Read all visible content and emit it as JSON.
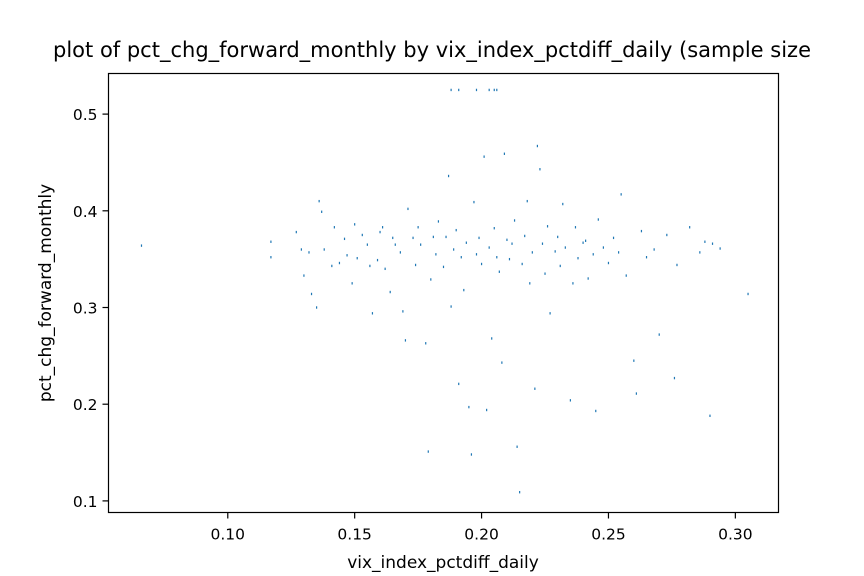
{
  "chart_data": {
    "type": "scatter",
    "title": "plot of pct_chg_forward_monthly by vix_index_pctdiff_daily (sample size",
    "xlabel": "vix_index_pctdiff_daily",
    "ylabel": "pct_chg_forward_monthly",
    "xlim": [
      0.053,
      0.317
    ],
    "ylim": [
      0.088,
      0.542
    ],
    "xticks": [
      0.1,
      0.15,
      0.2,
      0.25,
      0.3
    ],
    "xtick_labels": [
      "0.10",
      "0.15",
      "0.20",
      "0.25",
      "0.30"
    ],
    "yticks": [
      0.1,
      0.2,
      0.3,
      0.4,
      0.5
    ],
    "ytick_labels": [
      "0.1",
      "0.2",
      "0.3",
      "0.4",
      "0.5"
    ],
    "grid": false,
    "marker_color": "#1f77b4",
    "series": [
      {
        "points": [
          [
            0.066,
            0.364
          ],
          [
            0.117,
            0.368
          ],
          [
            0.117,
            0.352
          ],
          [
            0.127,
            0.378
          ],
          [
            0.129,
            0.36
          ],
          [
            0.13,
            0.333
          ],
          [
            0.132,
            0.357
          ],
          [
            0.133,
            0.314
          ],
          [
            0.135,
            0.3
          ],
          [
            0.136,
            0.41
          ],
          [
            0.137,
            0.399
          ],
          [
            0.138,
            0.36
          ],
          [
            0.141,
            0.343
          ],
          [
            0.142,
            0.383
          ],
          [
            0.144,
            0.346
          ],
          [
            0.146,
            0.371
          ],
          [
            0.147,
            0.354
          ],
          [
            0.149,
            0.325
          ],
          [
            0.15,
            0.386
          ],
          [
            0.151,
            0.351
          ],
          [
            0.153,
            0.375
          ],
          [
            0.155,
            0.365
          ],
          [
            0.156,
            0.343
          ],
          [
            0.157,
            0.294
          ],
          [
            0.159,
            0.349
          ],
          [
            0.16,
            0.378
          ],
          [
            0.161,
            0.383
          ],
          [
            0.162,
            0.34
          ],
          [
            0.164,
            0.316
          ],
          [
            0.165,
            0.372
          ],
          [
            0.166,
            0.365
          ],
          [
            0.168,
            0.357
          ],
          [
            0.169,
            0.296
          ],
          [
            0.17,
            0.266
          ],
          [
            0.171,
            0.402
          ],
          [
            0.173,
            0.372
          ],
          [
            0.174,
            0.344
          ],
          [
            0.175,
            0.383
          ],
          [
            0.176,
            0.365
          ],
          [
            0.178,
            0.263
          ],
          [
            0.179,
            0.151
          ],
          [
            0.18,
            0.329
          ],
          [
            0.181,
            0.373
          ],
          [
            0.182,
            0.355
          ],
          [
            0.183,
            0.389
          ],
          [
            0.185,
            0.342
          ],
          [
            0.186,
            0.373
          ],
          [
            0.187,
            0.436
          ],
          [
            0.188,
            0.301
          ],
          [
            0.189,
            0.36
          ],
          [
            0.19,
            0.38
          ],
          [
            0.191,
            0.221
          ],
          [
            0.192,
            0.352
          ],
          [
            0.193,
            0.318
          ],
          [
            0.194,
            0.367
          ],
          [
            0.195,
            0.197
          ],
          [
            0.196,
            0.148
          ],
          [
            0.197,
            0.409
          ],
          [
            0.198,
            0.355
          ],
          [
            0.199,
            0.372
          ],
          [
            0.2,
            0.345
          ],
          [
            0.201,
            0.456
          ],
          [
            0.202,
            0.194
          ],
          [
            0.203,
            0.362
          ],
          [
            0.204,
            0.268
          ],
          [
            0.205,
            0.382
          ],
          [
            0.206,
            0.352
          ],
          [
            0.207,
            0.337
          ],
          [
            0.208,
            0.243
          ],
          [
            0.209,
            0.459
          ],
          [
            0.21,
            0.37
          ],
          [
            0.211,
            0.35
          ],
          [
            0.212,
            0.366
          ],
          [
            0.213,
            0.39
          ],
          [
            0.214,
            0.156
          ],
          [
            0.215,
            0.109
          ],
          [
            0.216,
            0.345
          ],
          [
            0.217,
            0.374
          ],
          [
            0.218,
            0.41
          ],
          [
            0.219,
            0.325
          ],
          [
            0.22,
            0.357
          ],
          [
            0.221,
            0.216
          ],
          [
            0.222,
            0.467
          ],
          [
            0.223,
            0.443
          ],
          [
            0.224,
            0.366
          ],
          [
            0.225,
            0.335
          ],
          [
            0.226,
            0.384
          ],
          [
            0.227,
            0.294
          ],
          [
            0.229,
            0.358
          ],
          [
            0.23,
            0.373
          ],
          [
            0.231,
            0.343
          ],
          [
            0.232,
            0.407
          ],
          [
            0.233,
            0.362
          ],
          [
            0.235,
            0.204
          ],
          [
            0.236,
            0.325
          ],
          [
            0.237,
            0.383
          ],
          [
            0.238,
            0.351
          ],
          [
            0.24,
            0.367
          ],
          [
            0.241,
            0.369
          ],
          [
            0.242,
            0.33
          ],
          [
            0.244,
            0.355
          ],
          [
            0.245,
            0.193
          ],
          [
            0.246,
            0.391
          ],
          [
            0.248,
            0.362
          ],
          [
            0.25,
            0.346
          ],
          [
            0.252,
            0.372
          ],
          [
            0.254,
            0.357
          ],
          [
            0.255,
            0.417
          ],
          [
            0.257,
            0.333
          ],
          [
            0.26,
            0.245
          ],
          [
            0.261,
            0.211
          ],
          [
            0.263,
            0.379
          ],
          [
            0.265,
            0.352
          ],
          [
            0.268,
            0.36
          ],
          [
            0.27,
            0.272
          ],
          [
            0.273,
            0.375
          ],
          [
            0.276,
            0.227
          ],
          [
            0.277,
            0.344
          ],
          [
            0.282,
            0.383
          ],
          [
            0.286,
            0.357
          ],
          [
            0.288,
            0.368
          ],
          [
            0.29,
            0.188
          ],
          [
            0.291,
            0.366
          ],
          [
            0.294,
            0.361
          ],
          [
            0.305,
            0.314
          ],
          [
            0.188,
            0.525
          ],
          [
            0.191,
            0.525
          ],
          [
            0.198,
            0.525
          ],
          [
            0.203,
            0.525
          ],
          [
            0.205,
            0.525
          ],
          [
            0.206,
            0.525
          ]
        ]
      }
    ]
  }
}
